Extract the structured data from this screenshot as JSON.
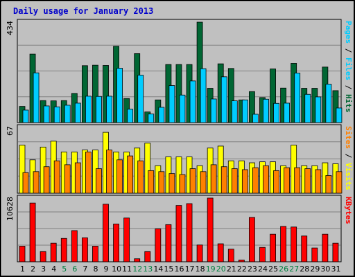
{
  "chart_data": {
    "type": "bar",
    "title": "Daily usage for January 2013",
    "colors": {
      "hits": "#006633",
      "files": "#00ccff",
      "sites": "#ff8000",
      "visits": "#ffff00",
      "kbytes": "#ff0000",
      "pages": "#00ccff",
      "weekend_label": "#008040",
      "title": "#0000cc",
      "background": "#c0c0c0"
    },
    "categories": [
      "1",
      "2",
      "3",
      "4",
      "5",
      "6",
      "7",
      "8",
      "9",
      "10",
      "11",
      "12",
      "13",
      "14",
      "15",
      "16",
      "17",
      "18",
      "19",
      "20",
      "21",
      "22",
      "23",
      "24",
      "25",
      "26",
      "27",
      "28",
      "29",
      "30",
      "31"
    ],
    "weekend_categories": [
      "5",
      "6",
      "12",
      "13",
      "19",
      "20",
      "26",
      "27"
    ],
    "panels": [
      {
        "name": "hits-files-pages",
        "y_tick_label": "434",
        "legend": [
          {
            "text": "Pages",
            "color": "#00ccff"
          },
          {
            "text": "Files",
            "color": "#00ccff"
          },
          {
            "text": "Hits",
            "color": "#006633"
          }
        ],
        "ylim": [
          0,
          434
        ],
        "series": [
          {
            "name": "Hits",
            "values": [
              70,
              296,
              95,
              94,
              95,
              126,
              246,
              248,
              247,
              330,
              104,
              298,
              46,
              98,
              251,
              251,
              251,
              434,
              148,
              254,
              234,
              98,
              134,
              108,
              232,
              149,
              256,
              148,
              148,
              240,
              138
            ],
            "color": "#006633"
          },
          {
            "name": "Files",
            "values": [
              54,
              215,
              72,
              68,
              75,
              84,
              114,
              113,
              114,
              235,
              58,
              205,
              37,
              66,
              160,
              119,
              180,
              233,
              102,
              198,
              94,
              98,
              36,
              101,
              83,
              84,
              214,
              122,
              111,
              166,
              63
            ],
            "color": "#00ccff"
          }
        ]
      },
      {
        "name": "visits-sites",
        "y_tick_label": "67",
        "legend": [
          {
            "text": "Sites",
            "color": "#ff8000"
          },
          {
            "text": "Visits",
            "color": "#ffff00"
          }
        ],
        "ylim": [
          0,
          67
        ],
        "series": [
          {
            "name": "Visits",
            "values": [
              49,
              34,
              47,
              53,
              42,
              42,
              44,
              44,
              62,
              42,
              42,
              46,
              51,
              28,
              37,
              37,
              37,
              28,
              46,
              48,
              33,
              33,
              31,
              32,
              32,
              28,
              49,
              28,
              28,
              31,
              30
            ],
            "color": "#ffff00"
          },
          {
            "name": "Sites",
            "values": [
              21,
              22,
              27,
              33,
              29,
              31,
              42,
              25,
              44,
              34,
              38,
              33,
              23,
              22,
              20,
              19,
              25,
              22,
              29,
              27,
              25,
              24,
              26,
              28,
              23,
              26,
              26,
              25,
              24,
              18,
              22
            ],
            "color": "#ff8000"
          }
        ]
      },
      {
        "name": "kbytes",
        "y_tick_label": "10628",
        "legend": [
          {
            "text": "KBytes",
            "color": "#ff0000"
          }
        ],
        "ylim": [
          0,
          10628
        ],
        "series": [
          {
            "name": "KBytes",
            "values": [
              2600,
              9800,
              1700,
              3100,
              3900,
              5200,
              4000,
              2600,
              9600,
              6300,
              7300,
              500,
              1700,
              5500,
              6200,
              9400,
              9700,
              2800,
              10628,
              3000,
              2100,
              300,
              7400,
              2400,
              4600,
              5900,
              5800,
              4300,
              2300,
              4600,
              3100
            ],
            "color": "#ff0000"
          }
        ]
      }
    ]
  }
}
